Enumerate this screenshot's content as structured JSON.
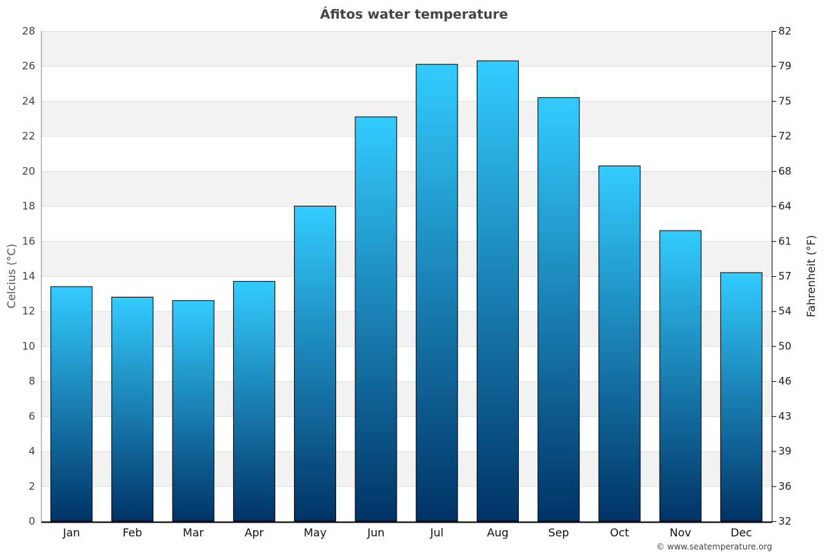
{
  "chart_data": {
    "type": "bar",
    "title": "Áfitos water temperature",
    "ylabel": "Celcius (°C)",
    "ylabel_right": "Fahrenheit (°F)",
    "categories": [
      "Jan",
      "Feb",
      "Mar",
      "Apr",
      "May",
      "Jun",
      "Jul",
      "Aug",
      "Sep",
      "Oct",
      "Nov",
      "Dec"
    ],
    "values": [
      13.4,
      12.8,
      12.6,
      13.7,
      18.0,
      23.1,
      26.1,
      26.3,
      24.2,
      20.3,
      16.6,
      14.2
    ],
    "ylim": [
      0,
      28
    ],
    "yticks": [
      "0",
      "2",
      "4",
      "6",
      "8",
      "10",
      "12",
      "14",
      "16",
      "18",
      "20",
      "22",
      "24",
      "26",
      "28"
    ],
    "yticks_right": [
      "32",
      "36",
      "39",
      "43",
      "46",
      "50",
      "54",
      "57",
      "61",
      "64",
      "68",
      "72",
      "75",
      "79",
      "82"
    ],
    "grid": true,
    "colors": {
      "bar_top": "#33ccff",
      "bar_bottom": "#003366",
      "band": "#f2f2f2"
    }
  },
  "credit": "© www.seatemperature.org"
}
